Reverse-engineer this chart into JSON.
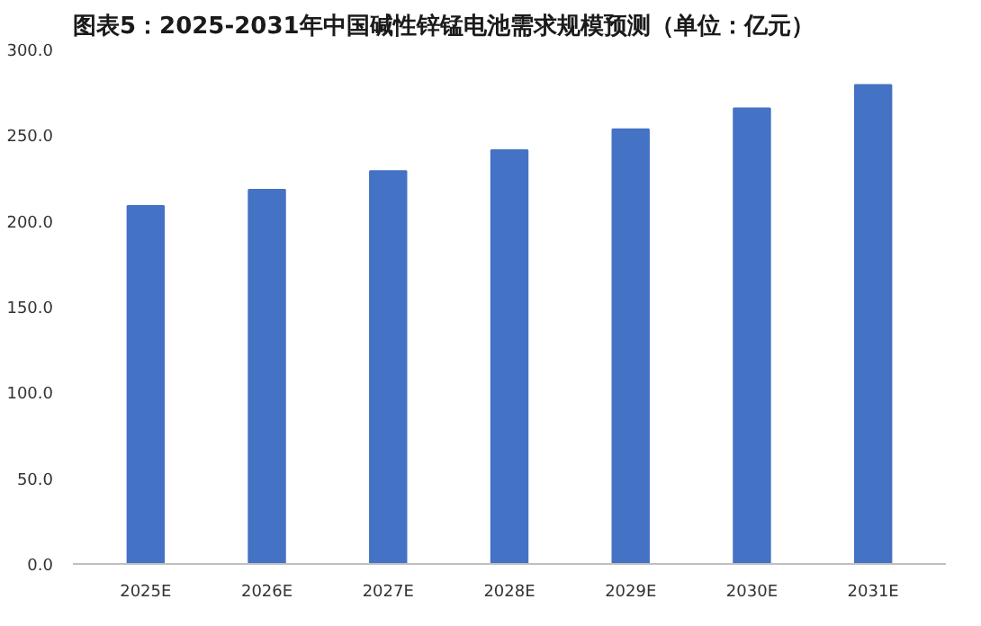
{
  "chart_data": {
    "type": "bar",
    "title": "图表5：2025-2031年中国碱性锌锰电池需求规模预测（单位：亿元）",
    "categories": [
      "2025E",
      "2026E",
      "2027E",
      "2028E",
      "2029E",
      "2030E",
      "2031E"
    ],
    "values": [
      208.7,
      218.2,
      229.0,
      241.2,
      253.4,
      265.6,
      279.3
    ],
    "color": "#4472c4",
    "ylim": [
      0,
      300
    ],
    "yticks": [
      {
        "value": 0,
        "label": "0.0"
      },
      {
        "value": 50,
        "label": "50.0"
      },
      {
        "value": 100,
        "label": "100.0"
      },
      {
        "value": 150,
        "label": "150.0"
      },
      {
        "value": 200,
        "label": "200.0"
      },
      {
        "value": 250,
        "label": "250.0"
      },
      {
        "value": 300,
        "label": "300.0"
      }
    ],
    "grid": false
  }
}
